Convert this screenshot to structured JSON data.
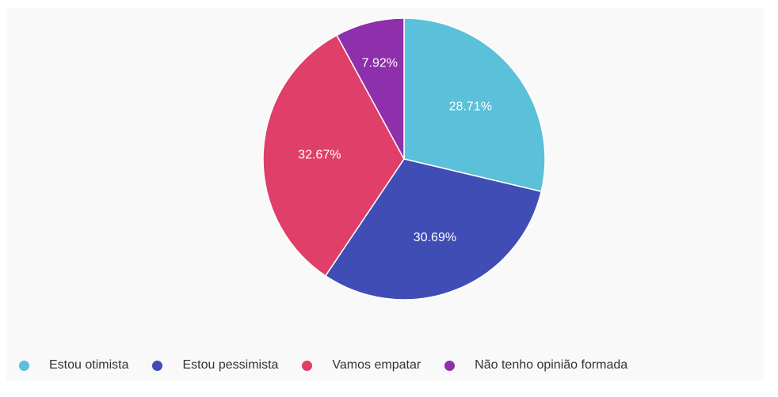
{
  "chart_data": {
    "type": "pie",
    "categories": [
      "Estou otimista",
      "Estou pessimista",
      "Vamos empatar",
      "Não tenho opinião formada"
    ],
    "values": [
      28.71,
      30.69,
      32.67,
      7.92
    ],
    "labels": [
      "28.71%",
      "30.69%",
      "32.67%",
      "7.92%"
    ],
    "colors": [
      "#5bc0d9",
      "#3f4db5",
      "#df3f68",
      "#8e2fab"
    ],
    "start_angle": "top",
    "direction": "clockwise",
    "legend_position": "bottom-left"
  }
}
